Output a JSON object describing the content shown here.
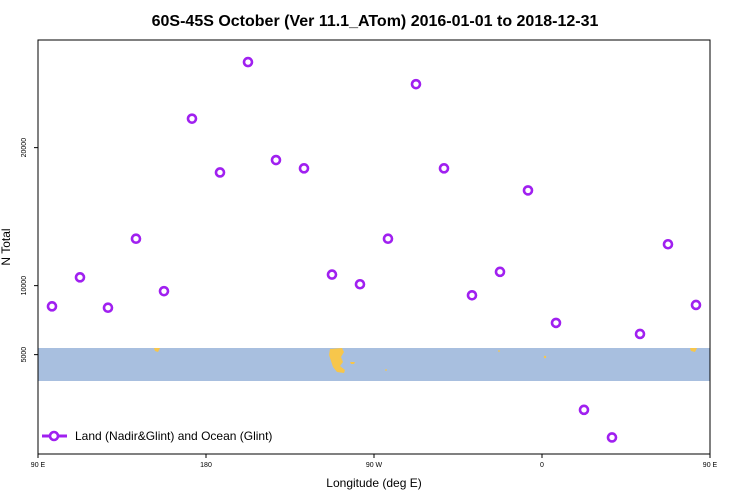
{
  "chart_data": {
    "type": "scatter",
    "title": "60S-45S October (Ver 11.1_ATom)   2016-01-01 to 2018-12-31",
    "xlabel": "Longitude (deg E)",
    "ylabel": "N Total",
    "xlim": [
      90,
      450
    ],
    "ylim": [
      -2200,
      27800
    ],
    "x_ticks": [
      {
        "value": 90,
        "label": "90 E"
      },
      {
        "value": 180,
        "label": "180"
      },
      {
        "value": 270,
        "label": "90 W"
      },
      {
        "value": 360,
        "label": "0"
      },
      {
        "value": 450,
        "label": "90 E"
      },
      {
        "value": 540,
        "label": "180"
      }
    ],
    "y_ticks": [
      {
        "value": 5000,
        "label": "5000"
      },
      {
        "value": 10000,
        "label": "10000"
      },
      {
        "value": 20000,
        "label": "20000"
      }
    ],
    "series": [
      {
        "name": "Land (Nadir&Glint) and Ocean (Glint)",
        "color": "#a020f0",
        "marker": "open-circle",
        "x": [
          97.5,
          112.5,
          127.5,
          142.5,
          157.5,
          172.5,
          187.5,
          202.5,
          217.5,
          232.5,
          247.5,
          262.5,
          277.5,
          292.5,
          307.5,
          322.5,
          337.5,
          352.5,
          367.5,
          382.5,
          397.5,
          412.5,
          427.5,
          442.5
        ],
        "y": [
          8500,
          10600,
          8400,
          13400,
          9600,
          22100,
          18200,
          26200,
          19100,
          18500,
          10800,
          10100,
          13400,
          24600,
          18500,
          9300,
          11000,
          16900,
          7300,
          1000,
          -1000,
          6500,
          13000,
          8600
        ]
      }
    ],
    "legend": {
      "position": "bottom-left",
      "label": "Land (Nadir&Glint) and Ocean (Glint)"
    },
    "map_strip": {
      "lat_range": "60S-45S",
      "ocean_color": "#a8bfdf",
      "land_color": "#f7c64b"
    },
    "grid": false
  }
}
